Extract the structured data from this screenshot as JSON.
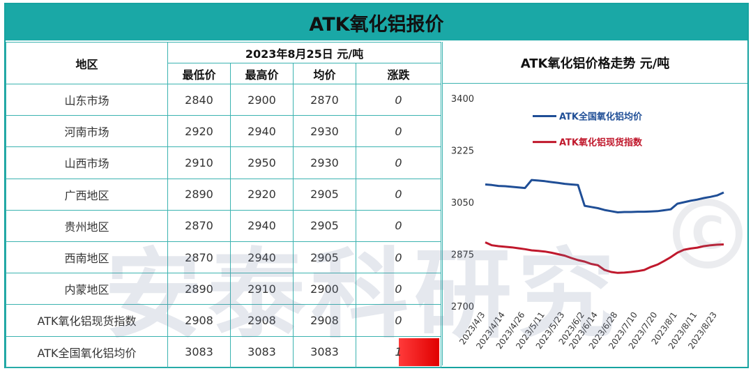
{
  "header": {
    "title": "ATK氧化铝报价"
  },
  "table": {
    "region_header": "地区",
    "date_unit_header": "2023年8月25日  元/吨",
    "columns": [
      "最低价",
      "最高价",
      "均价",
      "涨跌"
    ],
    "rows": [
      {
        "region": "山东市场",
        "low": "2840",
        "high": "2900",
        "avg": "2870",
        "change": "0"
      },
      {
        "region": "河南市场",
        "low": "2920",
        "high": "2940",
        "avg": "2930",
        "change": "0"
      },
      {
        "region": "山西市场",
        "low": "2910",
        "high": "2950",
        "avg": "2930",
        "change": "0"
      },
      {
        "region": "广西地区",
        "low": "2890",
        "high": "2920",
        "avg": "2905",
        "change": "0"
      },
      {
        "region": "贵州地区",
        "low": "2870",
        "high": "2940",
        "avg": "2905",
        "change": "0"
      },
      {
        "region": "西南地区",
        "low": "2870",
        "high": "2940",
        "avg": "2905",
        "change": "0"
      },
      {
        "region": "内蒙地区",
        "low": "2890",
        "high": "2910",
        "avg": "2900",
        "change": "0"
      },
      {
        "region": "ATK氧化铝现货指数",
        "low": "2908",
        "high": "2908",
        "avg": "2908",
        "change": "0"
      },
      {
        "region": "ATK全国氧化铝均价",
        "low": "3083",
        "high": "3083",
        "avg": "3083",
        "change": "1"
      }
    ]
  },
  "watermark": "安泰科研究",
  "copyright_symbol": "C",
  "chart_data": {
    "type": "line",
    "title": "ATK氧化铝价格走势  元/吨",
    "ylim": [
      2700,
      3400
    ],
    "yticks": [
      2700,
      2875,
      3050,
      3225,
      3400
    ],
    "xticks": [
      "2023/4/3",
      "2023/4/14",
      "2023/4/26",
      "2023/5/11",
      "2023/5/23",
      "2023/6/2",
      "2023/6/14",
      "2023/6/28",
      "2023/7/10",
      "2023/7/20",
      "2023/8/1",
      "2023/8/11",
      "2023/8/23"
    ],
    "x": [
      "2023/4/3",
      "2023/4/7",
      "2023/4/11",
      "2023/4/14",
      "2023/4/18",
      "2023/4/21",
      "2023/4/26",
      "2023/5/4",
      "2023/5/8",
      "2023/5/11",
      "2023/5/15",
      "2023/5/18",
      "2023/5/23",
      "2023/5/26",
      "2023/5/30",
      "2023/6/2",
      "2023/6/7",
      "2023/6/14",
      "2023/6/19",
      "2023/6/23",
      "2023/6/28",
      "2023/7/3",
      "2023/7/7",
      "2023/7/10",
      "2023/7/14",
      "2023/7/18",
      "2023/7/20",
      "2023/7/25",
      "2023/7/28",
      "2023/8/1",
      "2023/8/4",
      "2023/8/8",
      "2023/8/11",
      "2023/8/15",
      "2023/8/18",
      "2023/8/23",
      "2023/8/25"
    ],
    "series": [
      {
        "name": "ATK全国氧化铝均价",
        "color": "#1f4e96",
        "values": [
          3110,
          3108,
          3105,
          3104,
          3102,
          3100,
          3098,
          3125,
          3123,
          3121,
          3118,
          3115,
          3112,
          3110,
          3108,
          3038,
          3034,
          3030,
          3024,
          3020,
          3016,
          3017,
          3017,
          3018,
          3018,
          3019,
          3020,
          3023,
          3026,
          3045,
          3050,
          3055,
          3059,
          3064,
          3068,
          3073,
          3083
        ]
      },
      {
        "name": "ATK氧化铝现货指数",
        "color": "#c0182c",
        "values": [
          2915,
          2905,
          2902,
          2900,
          2898,
          2895,
          2892,
          2888,
          2886,
          2884,
          2880,
          2875,
          2870,
          2862,
          2855,
          2850,
          2842,
          2838,
          2822,
          2815,
          2812,
          2813,
          2815,
          2818,
          2822,
          2832,
          2840,
          2852,
          2865,
          2880,
          2890,
          2894,
          2897,
          2902,
          2905,
          2907,
          2908
        ]
      }
    ],
    "legend_placement": "top"
  }
}
